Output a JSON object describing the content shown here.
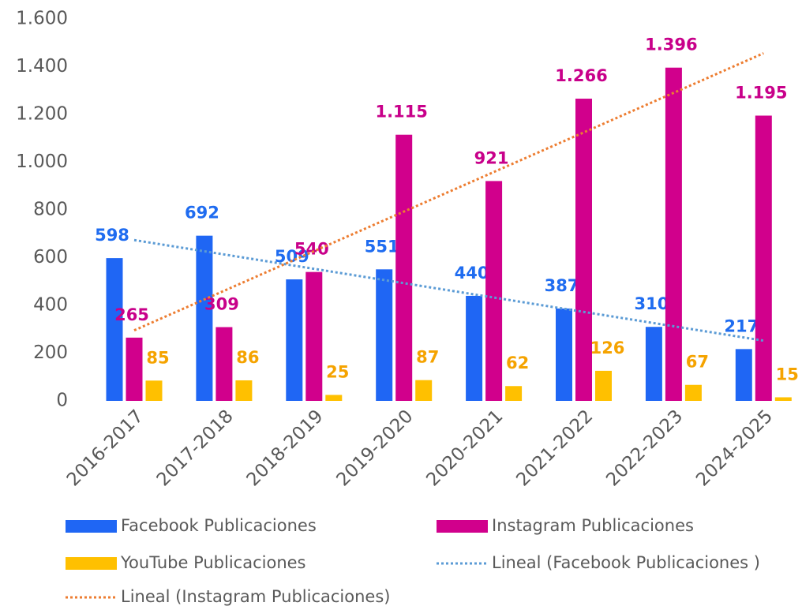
{
  "chart_data": {
    "type": "bar",
    "categories": [
      "2016-2017",
      "2017-2018",
      "2018-2019",
      "2019-2020",
      "2020-2021",
      "2021-2022",
      "2022-2023",
      "2024-2025"
    ],
    "series": [
      {
        "name": "Facebook Publicaciones",
        "color": "#1f66f4",
        "label_color": "#1f6cf0",
        "values": [
          598,
          692,
          509,
          551,
          440,
          387,
          310,
          217
        ]
      },
      {
        "name": "Instagram Publicaciones",
        "color": "#d1008c",
        "label_color": "#c8008a",
        "values": [
          265,
          309,
          540,
          1115,
          921,
          1266,
          1396,
          1195
        ],
        "value_labels": [
          "265",
          "309",
          "540",
          "1.115",
          "921",
          "1.266",
          "1.396",
          "1.195"
        ]
      },
      {
        "name": "YouTube Publicaciones",
        "color": "#ffc000",
        "label_color": "#f5a300",
        "values": [
          85,
          86,
          25,
          87,
          62,
          126,
          67,
          15
        ]
      }
    ],
    "trendlines": [
      {
        "name": "Lineal (Facebook Publicaciones )",
        "series": 0,
        "color": "#5b9bd5"
      },
      {
        "name": "Lineal (Instagram Publicaciones)",
        "series": 1,
        "color": "#ed7d31"
      }
    ],
    "ylim": [
      0,
      1600
    ],
    "yticks": [
      0,
      200,
      400,
      600,
      800,
      {
        "value": 1000,
        "label": "1.000"
      },
      {
        "value": 1200,
        "label": "1.200"
      },
      {
        "value": 1400,
        "label": "1.400"
      },
      {
        "value": 1600,
        "label": "1.600"
      }
    ],
    "grid": false
  }
}
